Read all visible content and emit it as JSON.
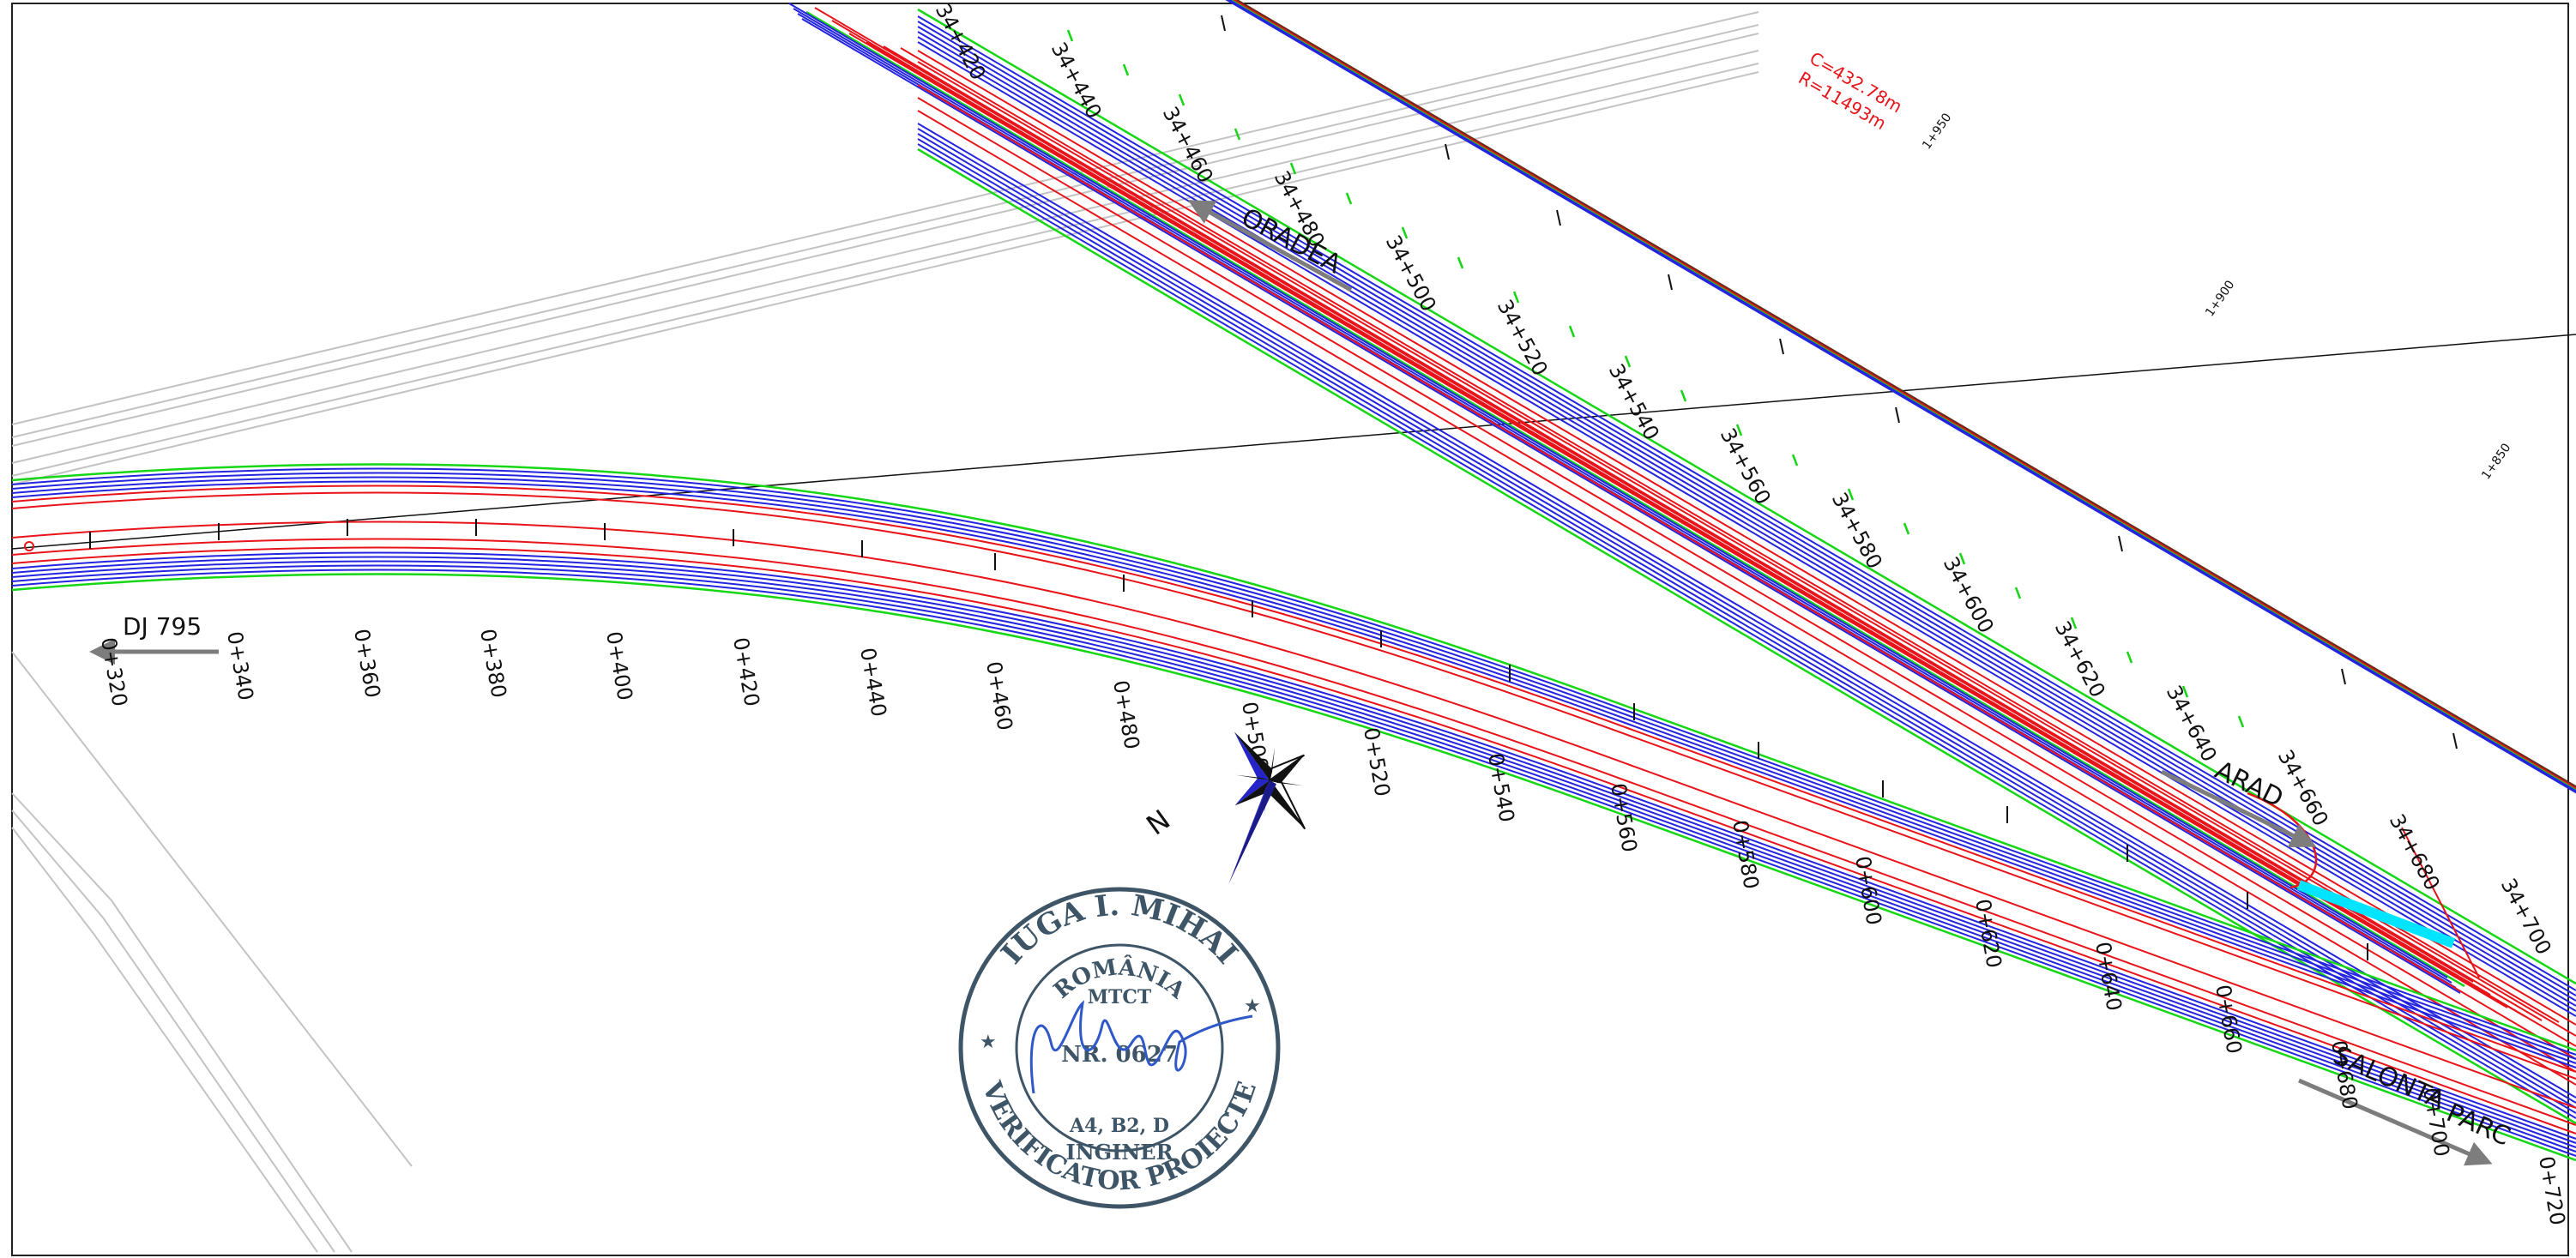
{
  "road_labels": {
    "dj795": "DJ 795",
    "oradea": "ORADEA",
    "arad": "ARAD",
    "salonta": "SALONTA",
    "parc": "PARC"
  },
  "curve_data": {
    "r": "R=11493m",
    "c": "C=432.78m"
  },
  "side_chainages": [
    "1+950",
    "1+900",
    "1+850"
  ],
  "main_chainages": [
    "0+320",
    "0+340",
    "0+360",
    "0+380",
    "0+400",
    "0+420",
    "0+440",
    "0+460",
    "0+480",
    "0+500",
    "0+520",
    "0+540",
    "0+560",
    "0+580",
    "0+600",
    "0+620",
    "0+640",
    "0+660",
    "0+680",
    "0+700",
    "0+720"
  ],
  "highway_chainages": [
    "34+420",
    "34+440",
    "34+460",
    "34+480",
    "34+500",
    "34+520",
    "34+540",
    "34+560",
    "34+580",
    "34+600",
    "34+620",
    "34+640",
    "34+660",
    "34+680",
    "34+700"
  ],
  "compass": {
    "letter": "N"
  },
  "stamp": {
    "name": "IUGA I. MIHAI",
    "country": "ROMÂNIA",
    "ministry": "MTCT",
    "number": "NR. 0627",
    "categories": "A4, B2, D",
    "title": "INGINER",
    "role": "VERIFICATOR PROIECTE"
  },
  "colors": {
    "edge_line": "#e8141a",
    "lane_blue": "#2424e0",
    "verge_green": "#16d616",
    "ramp_cyan": "#00e5ff",
    "background_lines": "#bfbfbf",
    "stamp_ink": "#3d5566",
    "signature_ink": "#2f58c8"
  }
}
